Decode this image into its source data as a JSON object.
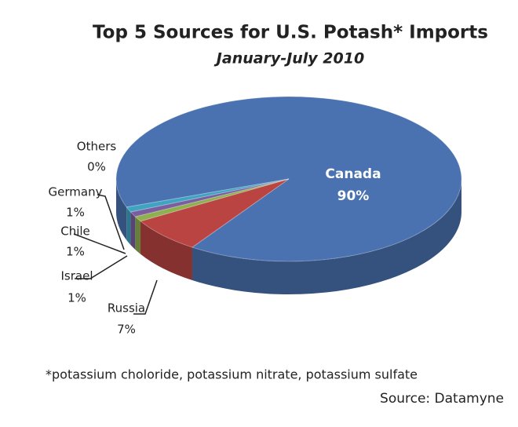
{
  "chart_data": {
    "type": "pie",
    "title": "Top 5 Sources for U.S. Potash* Imports",
    "subtitle": "January-July 2010",
    "categories": [
      "Canada",
      "Russia",
      "Israel",
      "Chile",
      "Germany",
      "Others"
    ],
    "values": [
      90,
      7,
      1,
      1,
      1,
      0
    ],
    "value_labels": [
      "90%",
      "7%",
      "1%",
      "1%",
      "1%",
      "0%"
    ],
    "colors": [
      "#4a72b0",
      "#b94441",
      "#8fb04f",
      "#7a5ea0",
      "#3fa3c2",
      "#f0913a"
    ],
    "footnote": "*potassium choloride, potassium nitrate, potassium sulfate",
    "source": "Source: Datamyne"
  }
}
